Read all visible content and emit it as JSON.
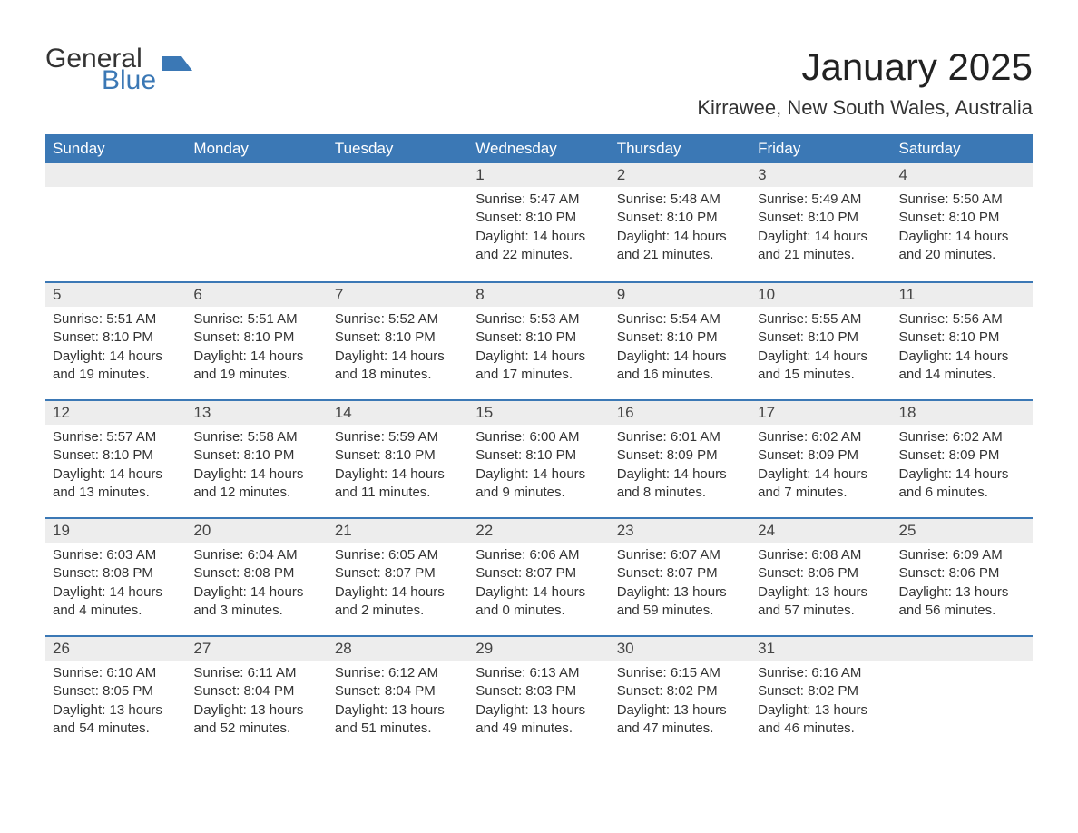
{
  "logo": {
    "text1": "General",
    "text2": "Blue",
    "icon_color": "#3b78b5"
  },
  "title": "January 2025",
  "location": "Kirrawee, New South Wales, Australia",
  "colors": {
    "header_bg": "#3b78b5",
    "header_text": "#ffffff",
    "daynum_bg": "#ededed",
    "row_border": "#3b78b5",
    "body_text": "#333333"
  },
  "fonts": {
    "title_size": 42,
    "location_size": 22,
    "header_size": 17,
    "body_size": 15
  },
  "day_headers": [
    "Sunday",
    "Monday",
    "Tuesday",
    "Wednesday",
    "Thursday",
    "Friday",
    "Saturday"
  ],
  "weeks": [
    [
      null,
      null,
      null,
      {
        "n": "1",
        "sr": "Sunrise: 5:47 AM",
        "ss": "Sunset: 8:10 PM",
        "dl": "Daylight: 14 hours and 22 minutes."
      },
      {
        "n": "2",
        "sr": "Sunrise: 5:48 AM",
        "ss": "Sunset: 8:10 PM",
        "dl": "Daylight: 14 hours and 21 minutes."
      },
      {
        "n": "3",
        "sr": "Sunrise: 5:49 AM",
        "ss": "Sunset: 8:10 PM",
        "dl": "Daylight: 14 hours and 21 minutes."
      },
      {
        "n": "4",
        "sr": "Sunrise: 5:50 AM",
        "ss": "Sunset: 8:10 PM",
        "dl": "Daylight: 14 hours and 20 minutes."
      }
    ],
    [
      {
        "n": "5",
        "sr": "Sunrise: 5:51 AM",
        "ss": "Sunset: 8:10 PM",
        "dl": "Daylight: 14 hours and 19 minutes."
      },
      {
        "n": "6",
        "sr": "Sunrise: 5:51 AM",
        "ss": "Sunset: 8:10 PM",
        "dl": "Daylight: 14 hours and 19 minutes."
      },
      {
        "n": "7",
        "sr": "Sunrise: 5:52 AM",
        "ss": "Sunset: 8:10 PM",
        "dl": "Daylight: 14 hours and 18 minutes."
      },
      {
        "n": "8",
        "sr": "Sunrise: 5:53 AM",
        "ss": "Sunset: 8:10 PM",
        "dl": "Daylight: 14 hours and 17 minutes."
      },
      {
        "n": "9",
        "sr": "Sunrise: 5:54 AM",
        "ss": "Sunset: 8:10 PM",
        "dl": "Daylight: 14 hours and 16 minutes."
      },
      {
        "n": "10",
        "sr": "Sunrise: 5:55 AM",
        "ss": "Sunset: 8:10 PM",
        "dl": "Daylight: 14 hours and 15 minutes."
      },
      {
        "n": "11",
        "sr": "Sunrise: 5:56 AM",
        "ss": "Sunset: 8:10 PM",
        "dl": "Daylight: 14 hours and 14 minutes."
      }
    ],
    [
      {
        "n": "12",
        "sr": "Sunrise: 5:57 AM",
        "ss": "Sunset: 8:10 PM",
        "dl": "Daylight: 14 hours and 13 minutes."
      },
      {
        "n": "13",
        "sr": "Sunrise: 5:58 AM",
        "ss": "Sunset: 8:10 PM",
        "dl": "Daylight: 14 hours and 12 minutes."
      },
      {
        "n": "14",
        "sr": "Sunrise: 5:59 AM",
        "ss": "Sunset: 8:10 PM",
        "dl": "Daylight: 14 hours and 11 minutes."
      },
      {
        "n": "15",
        "sr": "Sunrise: 6:00 AM",
        "ss": "Sunset: 8:10 PM",
        "dl": "Daylight: 14 hours and 9 minutes."
      },
      {
        "n": "16",
        "sr": "Sunrise: 6:01 AM",
        "ss": "Sunset: 8:09 PM",
        "dl": "Daylight: 14 hours and 8 minutes."
      },
      {
        "n": "17",
        "sr": "Sunrise: 6:02 AM",
        "ss": "Sunset: 8:09 PM",
        "dl": "Daylight: 14 hours and 7 minutes."
      },
      {
        "n": "18",
        "sr": "Sunrise: 6:02 AM",
        "ss": "Sunset: 8:09 PM",
        "dl": "Daylight: 14 hours and 6 minutes."
      }
    ],
    [
      {
        "n": "19",
        "sr": "Sunrise: 6:03 AM",
        "ss": "Sunset: 8:08 PM",
        "dl": "Daylight: 14 hours and 4 minutes."
      },
      {
        "n": "20",
        "sr": "Sunrise: 6:04 AM",
        "ss": "Sunset: 8:08 PM",
        "dl": "Daylight: 14 hours and 3 minutes."
      },
      {
        "n": "21",
        "sr": "Sunrise: 6:05 AM",
        "ss": "Sunset: 8:07 PM",
        "dl": "Daylight: 14 hours and 2 minutes."
      },
      {
        "n": "22",
        "sr": "Sunrise: 6:06 AM",
        "ss": "Sunset: 8:07 PM",
        "dl": "Daylight: 14 hours and 0 minutes."
      },
      {
        "n": "23",
        "sr": "Sunrise: 6:07 AM",
        "ss": "Sunset: 8:07 PM",
        "dl": "Daylight: 13 hours and 59 minutes."
      },
      {
        "n": "24",
        "sr": "Sunrise: 6:08 AM",
        "ss": "Sunset: 8:06 PM",
        "dl": "Daylight: 13 hours and 57 minutes."
      },
      {
        "n": "25",
        "sr": "Sunrise: 6:09 AM",
        "ss": "Sunset: 8:06 PM",
        "dl": "Daylight: 13 hours and 56 minutes."
      }
    ],
    [
      {
        "n": "26",
        "sr": "Sunrise: 6:10 AM",
        "ss": "Sunset: 8:05 PM",
        "dl": "Daylight: 13 hours and 54 minutes."
      },
      {
        "n": "27",
        "sr": "Sunrise: 6:11 AM",
        "ss": "Sunset: 8:04 PM",
        "dl": "Daylight: 13 hours and 52 minutes."
      },
      {
        "n": "28",
        "sr": "Sunrise: 6:12 AM",
        "ss": "Sunset: 8:04 PM",
        "dl": "Daylight: 13 hours and 51 minutes."
      },
      {
        "n": "29",
        "sr": "Sunrise: 6:13 AM",
        "ss": "Sunset: 8:03 PM",
        "dl": "Daylight: 13 hours and 49 minutes."
      },
      {
        "n": "30",
        "sr": "Sunrise: 6:15 AM",
        "ss": "Sunset: 8:02 PM",
        "dl": "Daylight: 13 hours and 47 minutes."
      },
      {
        "n": "31",
        "sr": "Sunrise: 6:16 AM",
        "ss": "Sunset: 8:02 PM",
        "dl": "Daylight: 13 hours and 46 minutes."
      },
      null
    ]
  ]
}
